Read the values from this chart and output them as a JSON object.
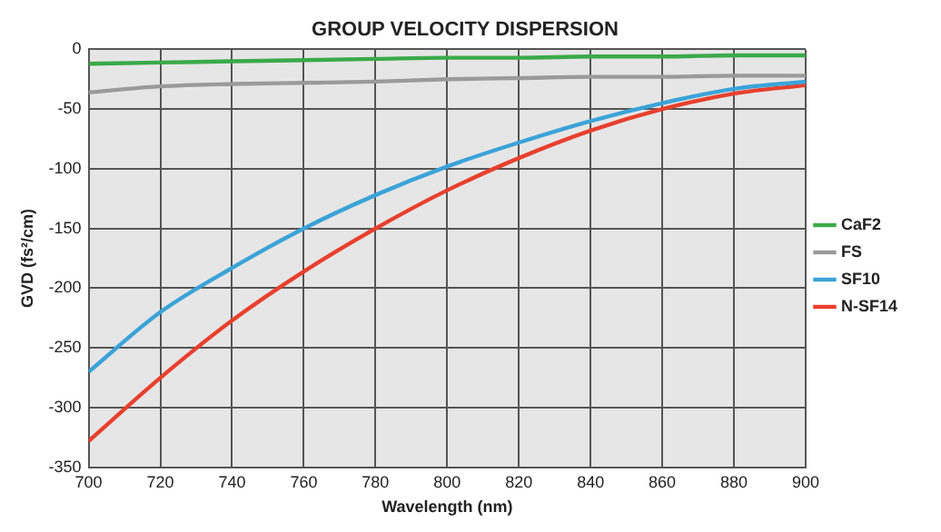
{
  "chart_data": {
    "type": "line",
    "title": "GROUP VELOCITY DISPERSION",
    "xlabel": "Wavelength (nm)",
    "ylabel": "GVD (fs²/cm)",
    "x": [
      700,
      720,
      740,
      760,
      780,
      800,
      820,
      840,
      860,
      880,
      900
    ],
    "series": [
      {
        "name": "CaF2",
        "color": "#3aaa4a",
        "values": [
          -12,
          -11,
          -10,
          -9,
          -8,
          -7,
          -7,
          -6,
          -6,
          -5,
          -5
        ]
      },
      {
        "name": "FS",
        "color": "#9a9a9a",
        "values": [
          -36,
          -31,
          -29,
          -28,
          -27,
          -25,
          -24,
          -23,
          -23,
          -22,
          -22
        ]
      },
      {
        "name": "SF10",
        "color": "#3ba3d8",
        "values": [
          -270,
          -220,
          -183,
          -150,
          -122,
          -98,
          -78,
          -60,
          -45,
          -33,
          -27
        ]
      },
      {
        "name": "N-SF14",
        "color": "#e8402e",
        "values": [
          -328,
          -275,
          -227,
          -186,
          -150,
          -118,
          -91,
          -68,
          -50,
          -37,
          -30
        ]
      }
    ],
    "xlim": [
      700,
      900
    ],
    "xticks": [
      700,
      720,
      740,
      760,
      780,
      800,
      820,
      840,
      860,
      880,
      900
    ],
    "ylim": [
      -350,
      0
    ],
    "yticks": [
      -350,
      -300,
      -250,
      -200,
      -150,
      -100,
      -50,
      0
    ],
    "grid": true,
    "legend": "right",
    "marker": "none",
    "line_style": "solid"
  }
}
